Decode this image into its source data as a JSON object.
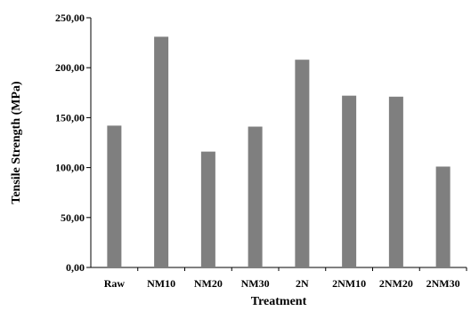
{
  "chart_data": {
    "type": "bar",
    "title": "",
    "xlabel": "Treatment",
    "ylabel": "Tensile Strength (MPa)",
    "categories": [
      "Raw",
      "NM10",
      "NM20",
      "NM30",
      "2N",
      "2NM10",
      "2NM20",
      "2NM30"
    ],
    "values": [
      142,
      231,
      116,
      141,
      208,
      172,
      171,
      101
    ],
    "ylim": [
      0,
      250
    ],
    "yticks": [
      0,
      50,
      100,
      150,
      200,
      250
    ],
    "ytick_labels": [
      "0,00",
      "50,00",
      "100,00",
      "150,00",
      "200,00",
      "250,00"
    ],
    "bar_color": "#7f7f7f",
    "grid": false,
    "legend": "none"
  }
}
